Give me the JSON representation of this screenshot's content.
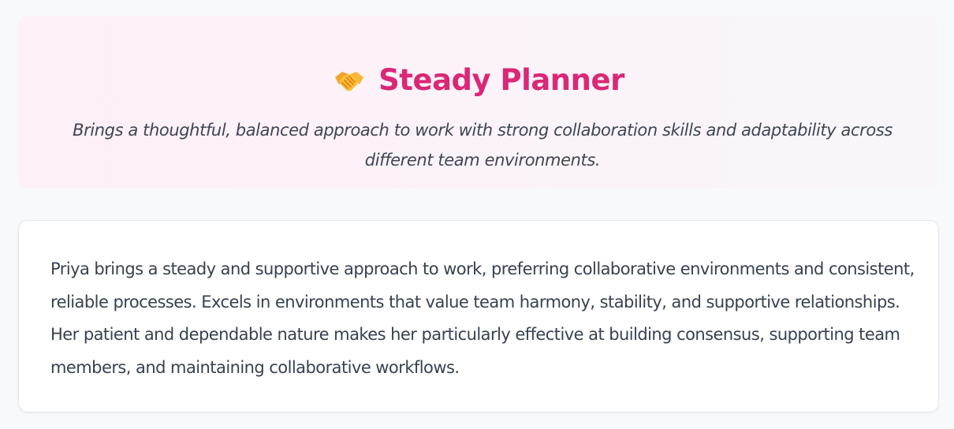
{
  "profile": {
    "icon": "handshake-icon",
    "title": "Steady Planner",
    "subtitle": "Brings a thoughtful, balanced approach to work with strong collaboration skills and adaptability across different team environments.",
    "accent_color": "#db2777"
  },
  "summary": {
    "text": "Priya brings a steady and supportive approach to work, preferring collaborative environments and consistent, reliable processes. Excels in environments that value team harmony, stability, and supportive relationships. Her patient and dependable nature makes her particularly effective at building consensus, supporting team members, and maintaining collaborative workflows."
  }
}
